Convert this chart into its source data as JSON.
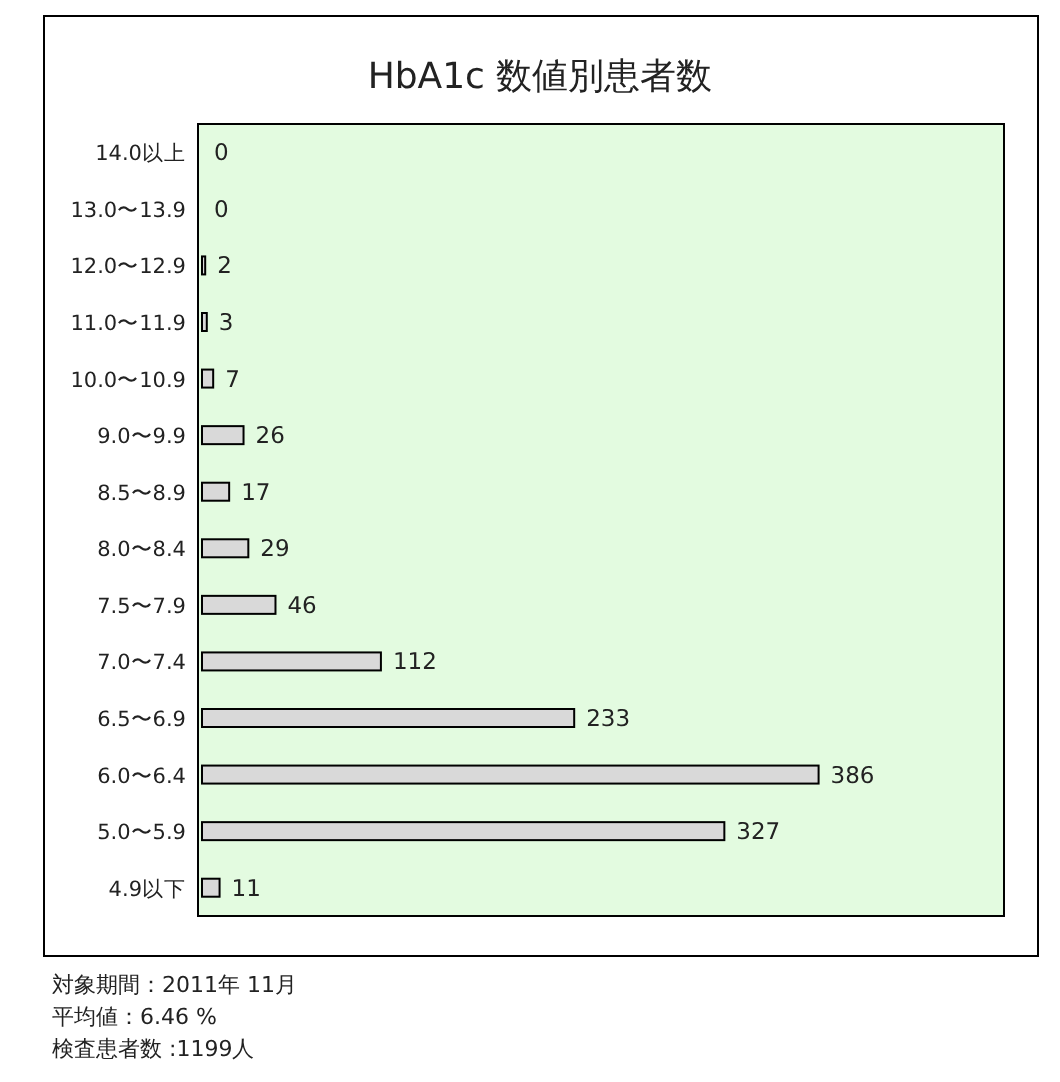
{
  "chart_data": {
    "type": "bar",
    "orientation": "horizontal",
    "title": "HbA1c 数値別患者数",
    "categories": [
      "14.0以上",
      "13.0〜13.9",
      "12.0〜12.9",
      "11.0〜11.9",
      "10.0〜10.9",
      "9.0〜9.9",
      "8.5〜8.9",
      "8.0〜8.4",
      "7.5〜7.9",
      "7.0〜7.4",
      "6.5〜6.9",
      "6.0〜6.4",
      "5.0〜5.9",
      "4.9以下"
    ],
    "values": [
      0,
      0,
      2,
      3,
      7,
      26,
      17,
      29,
      46,
      112,
      233,
      386,
      327,
      11
    ],
    "color": "#d9d9d9",
    "data_labels": true,
    "annotations": [
      "対象期間：2011年 11月",
      "平均値：6.46 %",
      "検査患者数 :1199人"
    ]
  }
}
